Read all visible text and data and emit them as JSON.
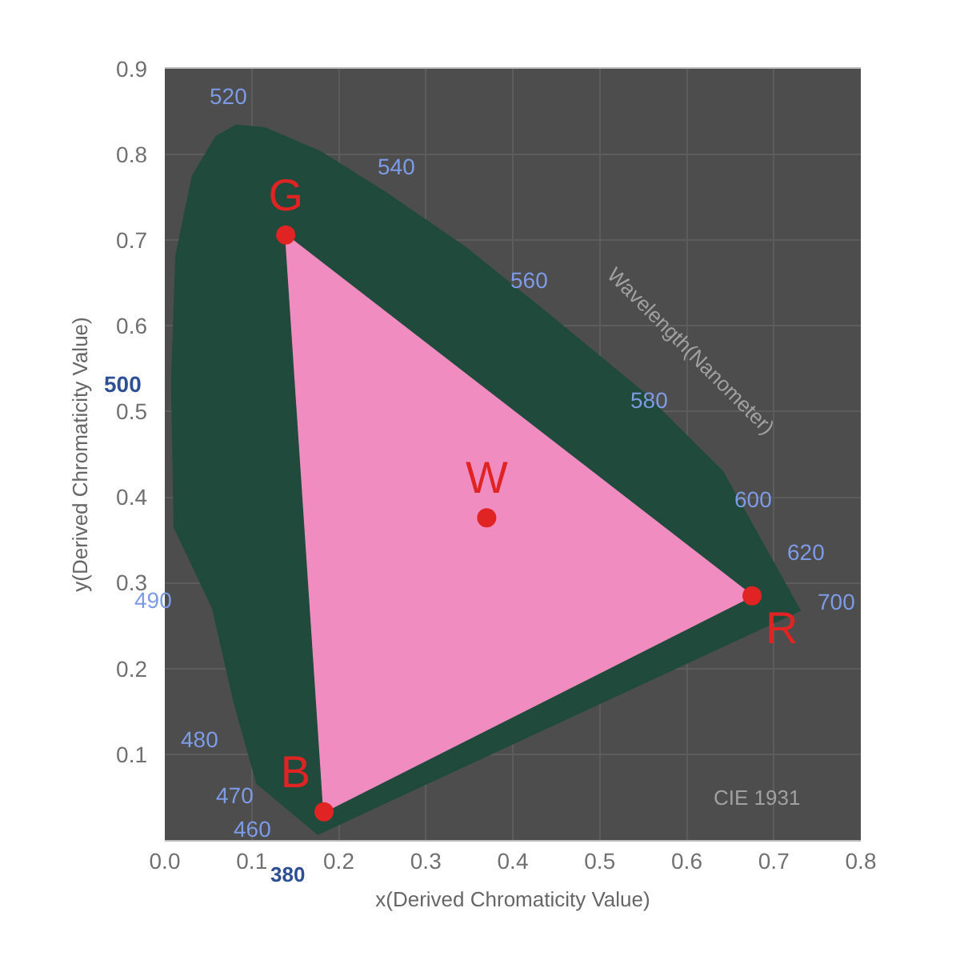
{
  "chart_data": {
    "type": "scatter",
    "xlabel": "x(Derived Chromaticity Value)",
    "ylabel": "y(Derived Chromaticity Value)",
    "xlim": [
      0,
      0.8
    ],
    "xticks": [
      {
        "value": 0,
        "label": "0.0"
      },
      0.1,
      0.2,
      0.3,
      0.4,
      0.5,
      0.6,
      0.7,
      0.8
    ],
    "ylim": [
      0,
      0.9
    ],
    "yticks": [
      0.1,
      0.2,
      0.3,
      0.4,
      0.5,
      0.6,
      0.7,
      0.8,
      0.9
    ],
    "grid": true,
    "series": [
      {
        "type": "area",
        "color": "#1f4a3c",
        "x": [
          0.176,
          0.106,
          0.08,
          0.055,
          0.011,
          0.008,
          0.013,
          0.032,
          0.059,
          0.082,
          0.115,
          0.179,
          0.253,
          0.346,
          0.438,
          0.549,
          0.641,
          0.73,
          0.176
        ],
        "values": [
          0.007,
          0.066,
          0.16,
          0.271,
          0.365,
          0.533,
          0.682,
          0.775,
          0.821,
          0.834,
          0.831,
          0.803,
          0.756,
          0.691,
          0.616,
          0.523,
          0.43,
          0.268,
          0.007
        ]
      },
      {
        "type": "area",
        "color": "#f08cc0",
        "x": [
          0.675,
          0.139,
          0.183,
          0.675
        ],
        "values": [
          0.285,
          0.706,
          0.033,
          0.285
        ]
      },
      {
        "type": "scatter",
        "color": "#e02424",
        "marker": "circle",
        "x": [
          0.675,
          0.139,
          0.183,
          0.37
        ],
        "values": [
          0.285,
          0.706,
          0.033,
          0.376
        ],
        "value_labels": [
          "R",
          "G",
          "B",
          "W"
        ]
      }
    ],
    "annotations": [
      "520",
      "540",
      "560",
      "580",
      "600",
      "620",
      "700",
      "500",
      "490",
      "480",
      "470",
      "460",
      "380",
      "Wavelength(Nanometer)",
      "CIE 1931"
    ]
  }
}
